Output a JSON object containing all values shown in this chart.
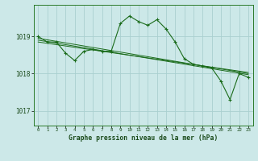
{
  "title": "Graphe pression niveau de la mer (hPa)",
  "bg_color": "#cce8e8",
  "grid_color": "#aad0d0",
  "line_color": "#1a6b1a",
  "xlim": [
    -0.5,
    23.5
  ],
  "ylim": [
    1016.6,
    1019.85
  ],
  "yticks": [
    1017,
    1018,
    1019
  ],
  "xticks": [
    0,
    1,
    2,
    3,
    4,
    5,
    6,
    7,
    8,
    9,
    10,
    11,
    12,
    13,
    14,
    15,
    16,
    17,
    18,
    19,
    20,
    21,
    22,
    23
  ],
  "xlabel_fontsize": 5.8,
  "series": [
    {
      "x": [
        0,
        1,
        2,
        3,
        4,
        5,
        6,
        7,
        8,
        9,
        10,
        11,
        12,
        13,
        14,
        15,
        16,
        17,
        18,
        19,
        20,
        21,
        22,
        23
      ],
      "y": [
        1019.0,
        1018.85,
        1018.85,
        1018.55,
        1018.35,
        1018.6,
        1018.65,
        1018.6,
        1018.6,
        1019.35,
        1019.55,
        1019.4,
        1019.3,
        1019.45,
        1019.2,
        1018.85,
        1018.4,
        1018.25,
        1018.2,
        1018.15,
        1017.8,
        1017.3,
        1018.0,
        1017.9
      ]
    },
    {
      "x": [
        0,
        23
      ],
      "y": [
        1018.95,
        1018.0
      ]
    },
    {
      "x": [
        0,
        23
      ],
      "y": [
        1018.9,
        1017.97
      ]
    },
    {
      "x": [
        0,
        23
      ],
      "y": [
        1018.85,
        1018.03
      ]
    }
  ]
}
